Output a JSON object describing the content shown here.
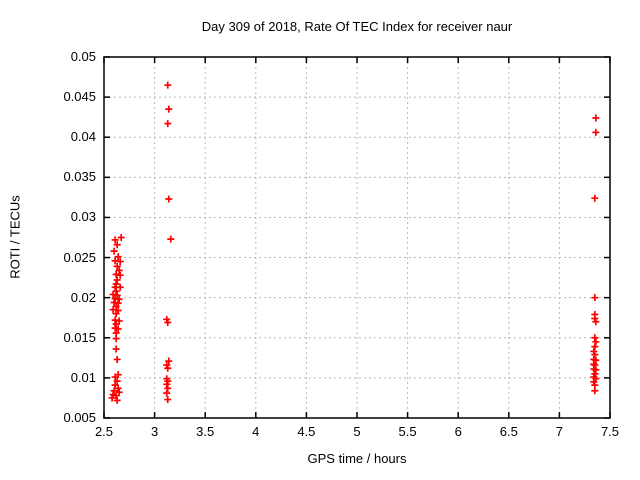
{
  "chart_data": {
    "type": "scatter",
    "title": "Day 309 of 2018, Rate Of TEC Index for receiver naur",
    "xlabel": "GPS time / hours",
    "ylabel": "ROTI / TECUs",
    "xlim": [
      2.5,
      7.5
    ],
    "ylim": [
      0.005,
      0.05
    ],
    "xticks": [
      2.5,
      3,
      3.5,
      4,
      4.5,
      5,
      5.5,
      6,
      6.5,
      7,
      7.5
    ],
    "yticks": [
      0.005,
      0.01,
      0.015,
      0.02,
      0.025,
      0.03,
      0.035,
      0.04,
      0.045,
      0.05
    ],
    "grid": true,
    "legend_position": "none",
    "marker": "plus",
    "marker_color": "#ff0000",
    "grid_color": "#b8b8b8",
    "axis_color": "#000000",
    "series": [
      {
        "name": "ROTI",
        "points": [
          [
            2.67,
            0.0275
          ],
          [
            2.61,
            0.0272
          ],
          [
            2.63,
            0.0266
          ],
          [
            2.6,
            0.0258
          ],
          [
            2.64,
            0.0251
          ],
          [
            2.61,
            0.0246
          ],
          [
            2.66,
            0.0245
          ],
          [
            2.63,
            0.0239
          ],
          [
            2.65,
            0.0234
          ],
          [
            2.62,
            0.0229
          ],
          [
            2.66,
            0.0228
          ],
          [
            2.63,
            0.0222
          ],
          [
            2.62,
            0.0217
          ],
          [
            2.61,
            0.0213
          ],
          [
            2.66,
            0.0213
          ],
          [
            2.62,
            0.0208
          ],
          [
            2.59,
            0.0204
          ],
          [
            2.63,
            0.0203
          ],
          [
            2.61,
            0.0199
          ],
          [
            2.65,
            0.0198
          ],
          [
            2.6,
            0.0194
          ],
          [
            2.64,
            0.0193
          ],
          [
            2.62,
            0.0189
          ],
          [
            2.59,
            0.0185
          ],
          [
            2.64,
            0.0184
          ],
          [
            2.62,
            0.018
          ],
          [
            2.61,
            0.0172
          ],
          [
            2.65,
            0.0171
          ],
          [
            2.62,
            0.0167
          ],
          [
            2.61,
            0.0162
          ],
          [
            2.64,
            0.0161
          ],
          [
            2.62,
            0.0156
          ],
          [
            2.62,
            0.0149
          ],
          [
            2.62,
            0.0136
          ],
          [
            2.63,
            0.0123
          ],
          [
            2.64,
            0.0104
          ],
          [
            2.61,
            0.0101
          ],
          [
            2.63,
            0.0096
          ],
          [
            2.61,
            0.0091
          ],
          [
            2.64,
            0.0087
          ],
          [
            2.6,
            0.0084
          ],
          [
            2.65,
            0.0082
          ],
          [
            2.59,
            0.0079
          ],
          [
            2.62,
            0.0078
          ],
          [
            2.58,
            0.0075
          ],
          [
            2.63,
            0.0072
          ],
          [
            3.13,
            0.0465
          ],
          [
            3.14,
            0.0435
          ],
          [
            3.13,
            0.0417
          ],
          [
            3.14,
            0.0323
          ],
          [
            3.16,
            0.0273
          ],
          [
            3.12,
            0.0173
          ],
          [
            3.13,
            0.0169
          ],
          [
            3.14,
            0.0121
          ],
          [
            3.12,
            0.0116
          ],
          [
            3.13,
            0.0112
          ],
          [
            3.12,
            0.0099
          ],
          [
            3.13,
            0.0096
          ],
          [
            3.12,
            0.0092
          ],
          [
            3.13,
            0.0087
          ],
          [
            3.12,
            0.0081
          ],
          [
            3.13,
            0.0073
          ],
          [
            7.36,
            0.0424
          ],
          [
            7.36,
            0.0406
          ],
          [
            7.35,
            0.0324
          ],
          [
            7.35,
            0.02
          ],
          [
            7.35,
            0.0179
          ],
          [
            7.35,
            0.0174
          ],
          [
            7.36,
            0.017
          ],
          [
            7.35,
            0.015
          ],
          [
            7.36,
            0.0145
          ],
          [
            7.35,
            0.0139
          ],
          [
            7.34,
            0.0133
          ],
          [
            7.35,
            0.0129
          ],
          [
            7.34,
            0.0123
          ],
          [
            7.36,
            0.0122
          ],
          [
            7.34,
            0.0117
          ],
          [
            7.35,
            0.0116
          ],
          [
            7.34,
            0.0111
          ],
          [
            7.36,
            0.011
          ],
          [
            7.35,
            0.0105
          ],
          [
            7.34,
            0.0101
          ],
          [
            7.36,
            0.0099
          ],
          [
            7.34,
            0.0095
          ],
          [
            7.35,
            0.0091
          ],
          [
            7.35,
            0.0084
          ]
        ]
      }
    ]
  }
}
